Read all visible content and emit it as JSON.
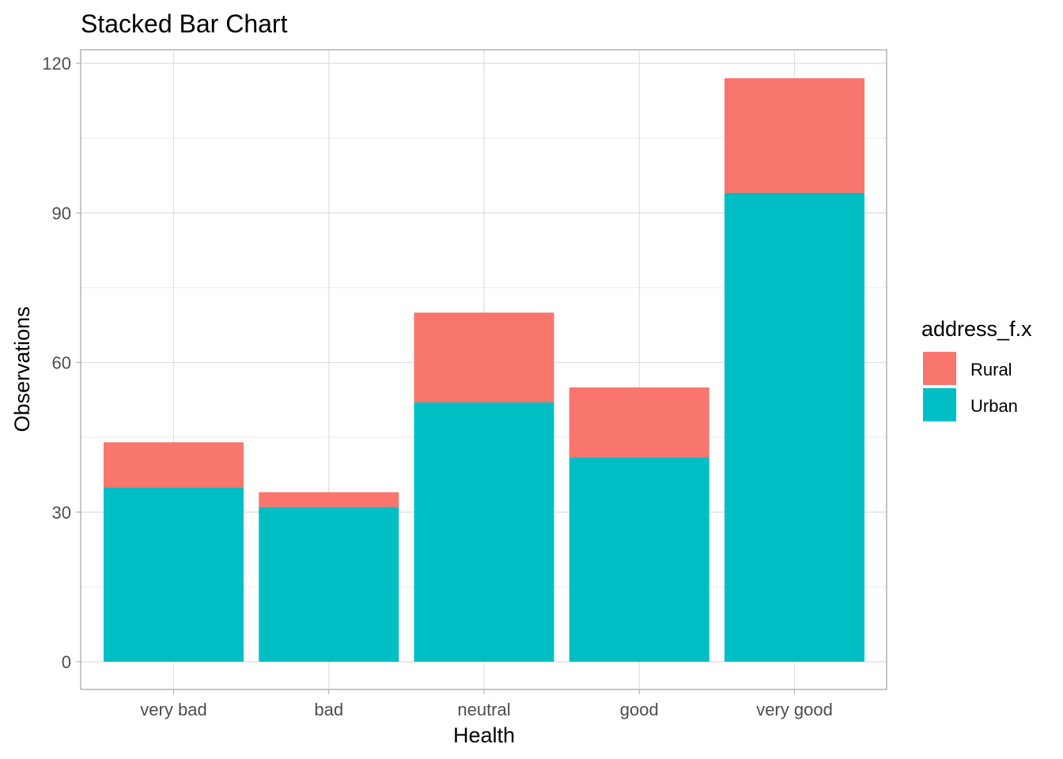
{
  "chart_data": {
    "type": "bar",
    "stacked": true,
    "title": "Stacked Bar Chart",
    "xlabel": "Health",
    "ylabel": "Observations",
    "categories": [
      "very bad",
      "bad",
      "neutral",
      "good",
      "very good"
    ],
    "series": [
      {
        "name": "Urban",
        "values": [
          35,
          31,
          52,
          41,
          94
        ],
        "color": "#00BFC4"
      },
      {
        "name": "Rural",
        "values": [
          9,
          3,
          18,
          14,
          23
        ],
        "color": "#F8766D"
      }
    ],
    "ylim": [
      0,
      120
    ],
    "yticks": [
      0,
      30,
      60,
      90,
      120
    ],
    "grid": true,
    "legend": {
      "title": "address_f.x",
      "position": "right",
      "entries": [
        {
          "label": "Rural",
          "color": "#F8766D"
        },
        {
          "label": "Urban",
          "color": "#00BFC4"
        }
      ]
    }
  }
}
